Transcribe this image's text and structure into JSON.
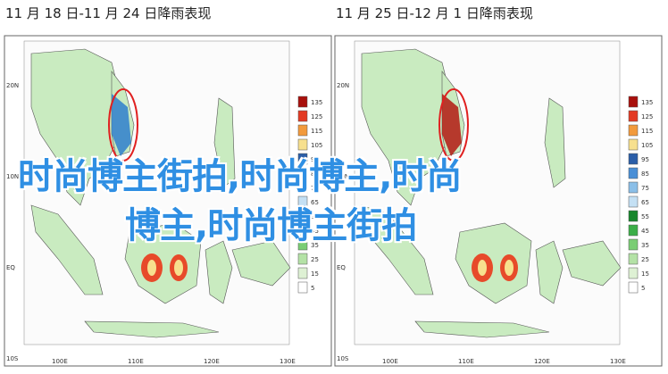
{
  "panels": [
    {
      "title": "11 月 18 日-11 月 24 日降雨表现"
    },
    {
      "title": "11 月 25 日-12 月 1 日降雨表现"
    }
  ],
  "legend": {
    "labels": [
      "135",
      "125",
      "115",
      "105",
      "95",
      "85",
      "75",
      "65",
      "55",
      "45",
      "35",
      "25",
      "15",
      "5"
    ],
    "colors": [
      "#a8100c",
      "#e33a24",
      "#f29a3c",
      "#f7e08e",
      "#2b5ea8",
      "#4a8fd6",
      "#8bbfe8",
      "#c4e0f4",
      "#17862c",
      "#3bae48",
      "#7acd74",
      "#b4e2a6",
      "#def1d4",
      "#ffffff"
    ]
  },
  "lat_labels": [
    "20N",
    "10N",
    "EQ",
    "10S"
  ],
  "lon_labels": [
    "100E",
    "110E",
    "120E",
    "130E"
  ],
  "overlay": [
    "时尚博主街拍,时尚博主,时尚",
    "博主,时尚博主街拍"
  ]
}
